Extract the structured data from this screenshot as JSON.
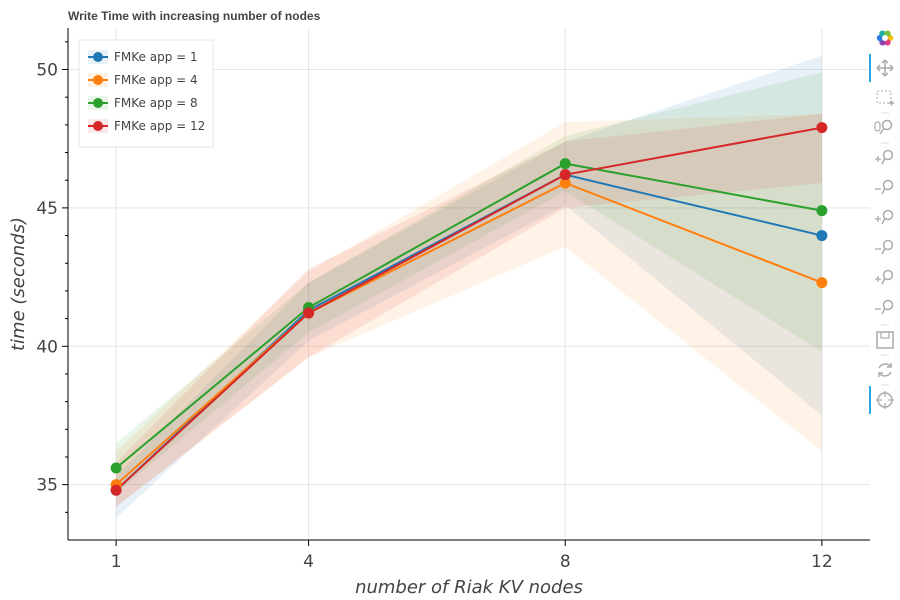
{
  "chart_data": {
    "type": "line",
    "title": "Write Time with increasing number of nodes",
    "xlabel": "number of Riak KV nodes",
    "ylabel": "time (seconds)",
    "x": [
      1,
      4,
      8,
      12
    ],
    "x_ticks": [
      "1",
      "4",
      "8",
      "12"
    ],
    "y_ticks": [
      "35",
      "40",
      "45",
      "50"
    ],
    "xlim": [
      0.25,
      12.75
    ],
    "ylim": [
      33.0,
      51.5
    ],
    "grid": true,
    "legend_position": "top-left",
    "markers": "circle",
    "series": [
      {
        "name": "FMKe app = 1",
        "color": "#1f77b4",
        "values": [
          34.8,
          41.3,
          46.2,
          44.0
        ],
        "band_lower": [
          33.8,
          40.2,
          45.1,
          37.5
        ],
        "band_upper": [
          35.3,
          42.3,
          47.4,
          50.5
        ]
      },
      {
        "name": "FMKe app = 4",
        "color": "#ff7f0e",
        "values": [
          35.0,
          41.2,
          45.9,
          42.3
        ],
        "band_lower": [
          34.2,
          39.6,
          43.6,
          36.2
        ],
        "band_upper": [
          36.2,
          42.7,
          48.1,
          48.4
        ]
      },
      {
        "name": "FMKe app = 8",
        "color": "#2ca02c",
        "values": [
          35.6,
          41.4,
          46.6,
          44.9
        ],
        "band_lower": [
          34.7,
          40.5,
          45.6,
          39.8
        ],
        "band_upper": [
          36.5,
          42.3,
          47.6,
          49.9
        ]
      },
      {
        "name": "FMKe app = 12",
        "color": "#d62728",
        "values": [
          34.8,
          41.2,
          46.2,
          47.9
        ],
        "band_lower": [
          34.2,
          39.6,
          45.0,
          45.9
        ],
        "band_upper": [
          35.8,
          42.8,
          47.4,
          48.4
        ]
      }
    ]
  },
  "toolbar": {
    "accent": "#26aae1",
    "icons": [
      "bokeh-logo-icon",
      "pan-icon",
      "box-zoom-icon",
      "wheel-zoom-icon",
      "zoom-in-icon",
      "zoom-out-icon",
      "zoom-in-x-icon",
      "zoom-out-x-icon",
      "zoom-in-y-icon",
      "zoom-out-y-icon",
      "save-icon",
      "reset-icon",
      "hover-icon"
    ]
  }
}
